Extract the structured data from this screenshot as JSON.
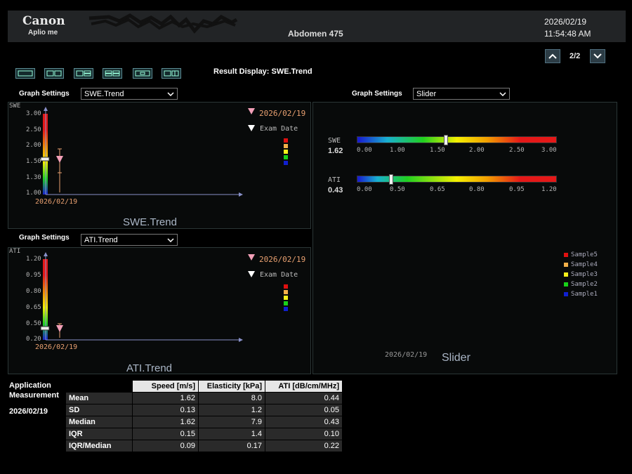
{
  "header": {
    "brand": "Canon",
    "model": "Aplio me",
    "exam_name": "Abdomen 475",
    "date": "2026/02/19",
    "time": "11:54:48 AM",
    "page_indicator": "2/2"
  },
  "result_display_label": "Result Display: SWE.Trend",
  "graph_settings_label": "Graph Settings",
  "panels": {
    "swe_trend": {
      "select_value": "SWE.Trend",
      "axis_label": "SWE",
      "ticks": [
        "3.00",
        "2.50",
        "2.00",
        "1.50",
        "1.30",
        "1.00"
      ],
      "legend_date": "2026/02/19",
      "legend_exam": "Exam Date",
      "x_date": "2026/02/19",
      "title": "SWE.Trend"
    },
    "ati_trend": {
      "select_value": "ATI.Trend",
      "axis_label": "ATI",
      "ticks": [
        "1.20",
        "0.95",
        "0.80",
        "0.65",
        "0.50",
        "0.20"
      ],
      "legend_date": "2026/02/19",
      "legend_exam": "Exam Date",
      "x_date": "2026/02/19",
      "title": "ATI.Trend"
    },
    "slider": {
      "select_value": "Slider",
      "swe_label": "SWE",
      "swe_value": "1.62",
      "swe_ticks": [
        "0.00",
        "1.00",
        "1.50",
        "2.00",
        "2.50",
        "3.00"
      ],
      "ati_label": "ATI",
      "ati_value": "0.43",
      "ati_ticks": [
        "0.00",
        "0.50",
        "0.65",
        "0.80",
        "0.95",
        "1.20"
      ],
      "legend": [
        "Sample5",
        "Sample4",
        "Sample3",
        "Sample2",
        "Sample1"
      ],
      "date": "2026/02/19",
      "title": "Slider"
    }
  },
  "sample_colors": [
    "#e01010",
    "#f2b04a",
    "#f4f01a",
    "#18d018",
    "#1020d0"
  ],
  "measurement": {
    "title_line1": "Application",
    "title_line2": "Measurement",
    "date": "2026/02/19",
    "headers": [
      "",
      "Speed [m/s]",
      "Elasticity [kPa]",
      "ATI [dB/cm/MHz]"
    ],
    "rows": [
      [
        "Mean",
        "1.62",
        "8.0",
        "0.44"
      ],
      [
        "SD",
        "0.13",
        "1.2",
        "0.05"
      ],
      [
        "Median",
        "1.62",
        "7.9",
        "0.43"
      ],
      [
        "IQR",
        "0.15",
        "1.4",
        "0.10"
      ],
      [
        "IQR/Median",
        "0.09",
        "0.17",
        "0.22"
      ]
    ]
  }
}
